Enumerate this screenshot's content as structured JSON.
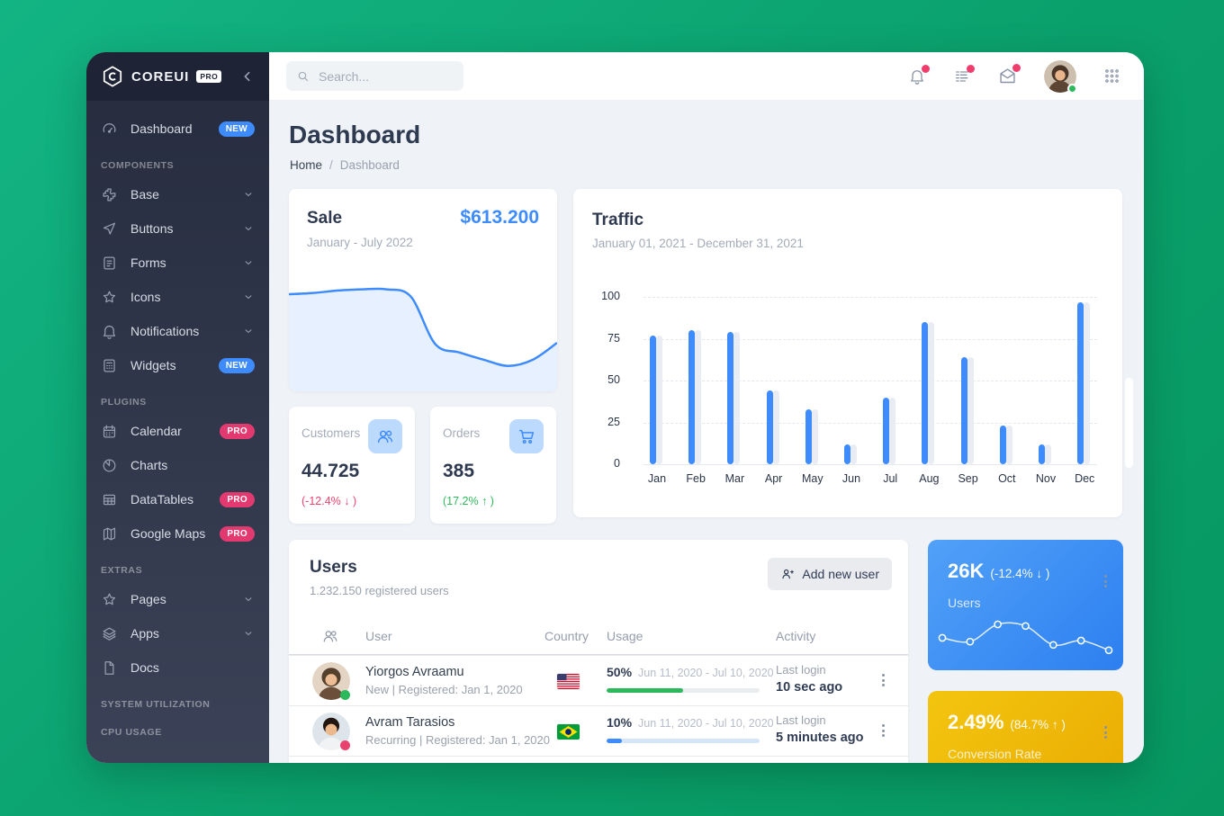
{
  "theme": {
    "background_green_top": "#13b483",
    "background_green_bottom": "#079862",
    "accent_blue": "#3e8bfd",
    "success_green": "#2eb85c",
    "danger_pink": "#e8436f",
    "warning_yellow": "#eab308",
    "sidebar_dark": "#262c3e"
  },
  "sidebar": {
    "brand": {
      "name": "COREUI",
      "badge": "PRO"
    },
    "groups": [
      {
        "items": [
          {
            "label": "Dashboard",
            "icon": "speedometer",
            "badge": "NEW"
          }
        ]
      },
      {
        "title": "COMPONENTS",
        "items": [
          {
            "label": "Base",
            "icon": "puzzle",
            "chevron": true
          },
          {
            "label": "Buttons",
            "icon": "cursor",
            "chevron": true
          },
          {
            "label": "Forms",
            "icon": "notes",
            "chevron": true
          },
          {
            "label": "Icons",
            "icon": "star",
            "chevron": true
          },
          {
            "label": "Notifications",
            "icon": "bell",
            "chevron": true
          },
          {
            "label": "Widgets",
            "icon": "calculator",
            "badge": "NEW"
          }
        ]
      },
      {
        "title": "PLUGINS",
        "items": [
          {
            "label": "Calendar",
            "icon": "calendar",
            "badge": "PRO"
          },
          {
            "label": "Charts",
            "icon": "pie-chart"
          },
          {
            "label": "DataTables",
            "icon": "table",
            "badge": "PRO"
          },
          {
            "label": "Google Maps",
            "icon": "map",
            "badge": "PRO"
          }
        ]
      },
      {
        "title": "EXTRAS",
        "items": [
          {
            "label": "Pages",
            "icon": "star",
            "chevron": true
          },
          {
            "label": "Apps",
            "icon": "layers",
            "chevron": true
          },
          {
            "label": "Docs",
            "icon": "file"
          }
        ]
      },
      {
        "title": "SYSTEM UTILIZATION",
        "items": []
      }
    ],
    "footer_label": "CPU USAGE"
  },
  "header": {
    "search_placeholder": "Search..."
  },
  "page": {
    "title": "Dashboard",
    "breadcrumb": [
      "Home",
      "Dashboard"
    ],
    "breadcrumb_separator": "/"
  },
  "sale_card": {
    "title": "Sale",
    "value": "$613.200",
    "period": "January - July 2022"
  },
  "traffic_card": {
    "title": "Traffic",
    "period": "January 01, 2021 - December 31, 2021"
  },
  "stats": [
    {
      "label": "Customers",
      "icon": "people",
      "value": "44.725",
      "delta": "(-12.4% ↓ )",
      "delta_color": "#e8436f"
    },
    {
      "label": "Orders",
      "icon": "cart",
      "value": "385",
      "delta": "(17.2% ↑ )",
      "delta_color": "#2eb85c"
    }
  ],
  "users_card": {
    "title": "Users",
    "subtitle": "1.232.150 registered users",
    "add_button": "Add new user",
    "columns": [
      "User",
      "Country",
      "Usage",
      "Activity"
    ],
    "rows": [
      {
        "name": "Yiorgos Avraamu",
        "detail": "New | Registered: Jan 1, 2020",
        "country": "United States",
        "usage_label": "50%",
        "usage_percent": 50,
        "usage_period": "Jun 11, 2020 - Jul 10, 2020",
        "usage_color": "#2eb85c",
        "usage_track": "#e9edf0",
        "activity_label": "Last login",
        "activity_value": "10 sec ago",
        "status_color": "#2eb85c"
      },
      {
        "name": "Avram Tarasios",
        "detail": "Recurring | Registered: Jan 1, 2020",
        "country": "Brazil",
        "usage_label": "10%",
        "usage_percent": 10,
        "usage_period": "Jun 11, 2020 - Jul 10, 2020",
        "usage_color": "#3e8bfd",
        "usage_track": "#d5e5f8",
        "activity_label": "Last login",
        "activity_value": "5 minutes ago",
        "status_color": "#e8436f"
      }
    ]
  },
  "widget_users": {
    "value": "26K",
    "delta": "(-12.4% ↓ )",
    "label": "Users"
  },
  "widget_conversion": {
    "value": "2.49%",
    "delta": "(84.7% ↑ )",
    "label": "Conversion Rate"
  },
  "chart_data": [
    {
      "name": "sale-trend",
      "type": "area",
      "title": "Sale",
      "subtitle": "January - July 2022",
      "values": [
        80,
        81,
        83,
        84,
        84,
        78,
        39,
        32,
        26,
        21,
        26,
        40
      ],
      "ylim": [
        0,
        100
      ],
      "grid": false,
      "color": "#3e8bfd",
      "fill": "#e7f0fe"
    },
    {
      "name": "traffic",
      "type": "bar",
      "title": "Traffic",
      "subtitle": "January 01, 2021 - December 31, 2021",
      "categories": [
        "Jan",
        "Feb",
        "Mar",
        "Apr",
        "May",
        "Jun",
        "Jul",
        "Aug",
        "Sep",
        "Oct",
        "Nov",
        "Dec"
      ],
      "values": [
        77,
        80,
        79,
        44,
        33,
        12,
        40,
        85,
        64,
        23,
        12,
        97
      ],
      "ylim": [
        0,
        100
      ],
      "yticks": [
        0,
        25,
        50,
        75,
        100
      ],
      "grid": "dashed",
      "bar_color": "#3e8bfd",
      "shadow_bar_color": "#e9ecf2"
    },
    {
      "name": "users-spark",
      "type": "line",
      "title": "26K Users widget sparkline",
      "values": [
        45,
        38,
        70,
        67,
        32,
        40,
        22
      ],
      "ylim": [
        0,
        100
      ],
      "grid": false,
      "color": "#ffffff",
      "marker_fill": "#3e93f6"
    }
  ]
}
